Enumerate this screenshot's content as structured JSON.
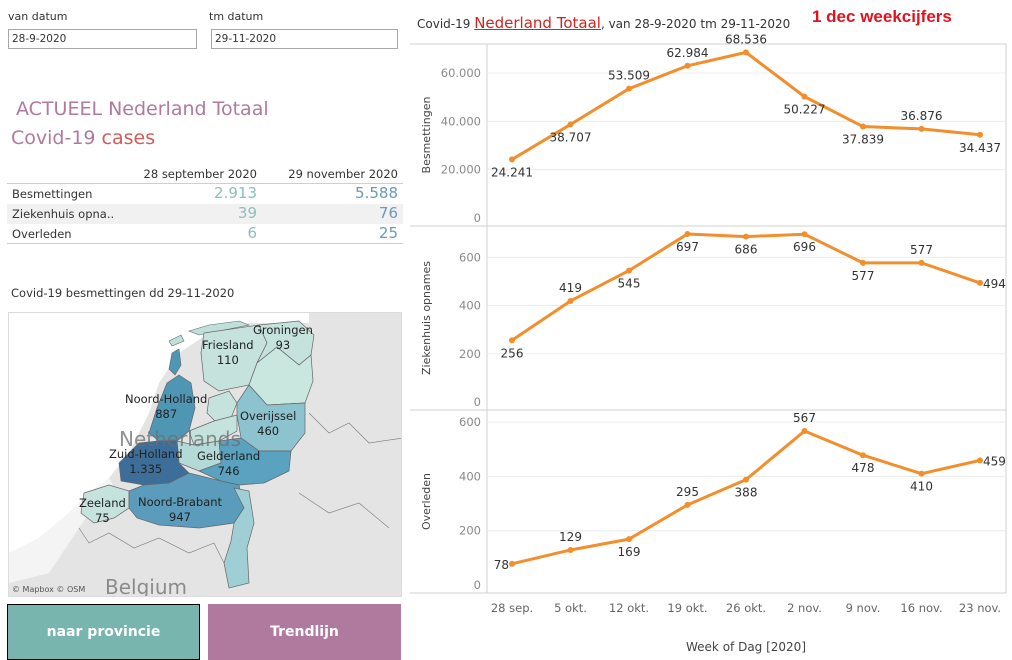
{
  "filters": {
    "from_label": "van datum",
    "from_value": "28-9-2020",
    "to_label": "tm datum",
    "to_value": "29-11-2020"
  },
  "left_title": {
    "line1": "ACTUEEL Nederland Totaal",
    "line2_prefix": "Covid-19 ",
    "line2_highlight": "cases"
  },
  "summary": {
    "col1": "28 september 2020",
    "col2": "29 november 2020",
    "rows": [
      {
        "label": "Besmettingen",
        "v1": "2.913",
        "v2": "5.588"
      },
      {
        "label": "Ziekenhuis opna..",
        "v1": "39",
        "v2": "76"
      },
      {
        "label": "Overleden",
        "v1": "6",
        "v2": "25"
      }
    ]
  },
  "map": {
    "title": "Covid-19 besmettingen dd 29-11-2020",
    "country_netherlands": "Netherlands",
    "country_belgium": "Belgium",
    "credit": "© Mapbox © OSM",
    "provinces": [
      {
        "name": "Groningen",
        "value": "93"
      },
      {
        "name": "Friesland",
        "value": "110"
      },
      {
        "name": "Noord-Holland",
        "value": "887"
      },
      {
        "name": "Overijssel",
        "value": "460"
      },
      {
        "name": "Zuid-Holland",
        "value": "1.335"
      },
      {
        "name": "Gelderland",
        "value": "746"
      },
      {
        "name": "Zeeland",
        "value": "75"
      },
      {
        "name": "Noord-Brabant",
        "value": "947"
      }
    ]
  },
  "buttons": {
    "provincie": "naar provincie",
    "trendlijn": "Trendlijn"
  },
  "chart_header": {
    "prefix": "Covid-19 ",
    "link": "Nederland Totaal",
    "suffix": ", van 28-9-2020 tm 29-11-2020",
    "badge": "1 dec weekcijfers"
  },
  "colors": {
    "line": "#f28e2b",
    "accent_red": "#e0141e",
    "teal_button": "#77b5ae",
    "purple_button": "#b07a9e"
  },
  "chart_data": {
    "type": "line",
    "title": "Covid-19 Nederland Totaal, van 28-9-2020 tm 29-11-2020",
    "xlabel": "Week of Dag [2020]",
    "categories": [
      "28 sep.",
      "5 okt.",
      "12 okt.",
      "19 okt.",
      "26 okt.",
      "2 nov.",
      "9 nov.",
      "16 nov.",
      "23 nov."
    ],
    "grid": true,
    "panels": [
      {
        "name": "Besmettingen",
        "ylabel": "Besmettingen",
        "ylim": [
          0,
          72000
        ],
        "ticks": [
          0,
          20000,
          40000,
          60000
        ],
        "tick_labels": [
          "0",
          "20.000",
          "40.000",
          "60.000"
        ],
        "values": [
          24241,
          38707,
          53509,
          62984,
          68536,
          50227,
          37839,
          36876,
          34437
        ],
        "labels": [
          "24.241",
          "38.707",
          "53.509",
          "62.984",
          "68.536",
          "50.227",
          "37.839",
          "36.876",
          "34.437"
        ],
        "label_pos": [
          "below",
          "below",
          "above",
          "above",
          "above",
          "below",
          "below",
          "above",
          "below"
        ]
      },
      {
        "name": "Ziekenhuis opnames",
        "ylabel": "Ziekenhuis opnames",
        "ylim": [
          0,
          730
        ],
        "ticks": [
          0,
          200,
          400,
          600
        ],
        "tick_labels": [
          "0",
          "200",
          "400",
          "600"
        ],
        "values": [
          256,
          419,
          545,
          697,
          686,
          696,
          577,
          577,
          494
        ],
        "labels": [
          "256",
          "419",
          "545",
          "697",
          "686",
          "696",
          "577",
          "577",
          "494"
        ],
        "label_pos": [
          "below",
          "above",
          "below",
          "below",
          "below",
          "below",
          "below",
          "above",
          "right"
        ]
      },
      {
        "name": "Overleden",
        "ylabel": "Overleden",
        "ylim": [
          0,
          615
        ],
        "ticks": [
          0,
          200,
          400,
          600
        ],
        "tick_labels": [
          "0",
          "200",
          "400",
          "600"
        ],
        "values": [
          78,
          129,
          169,
          295,
          388,
          567,
          478,
          410,
          459
        ],
        "labels": [
          "78",
          "129",
          "169",
          "295",
          "388",
          "567",
          "478",
          "410",
          "459"
        ],
        "label_pos": [
          "left",
          "above",
          "below",
          "above",
          "below",
          "above",
          "below",
          "below",
          "right"
        ]
      }
    ]
  }
}
